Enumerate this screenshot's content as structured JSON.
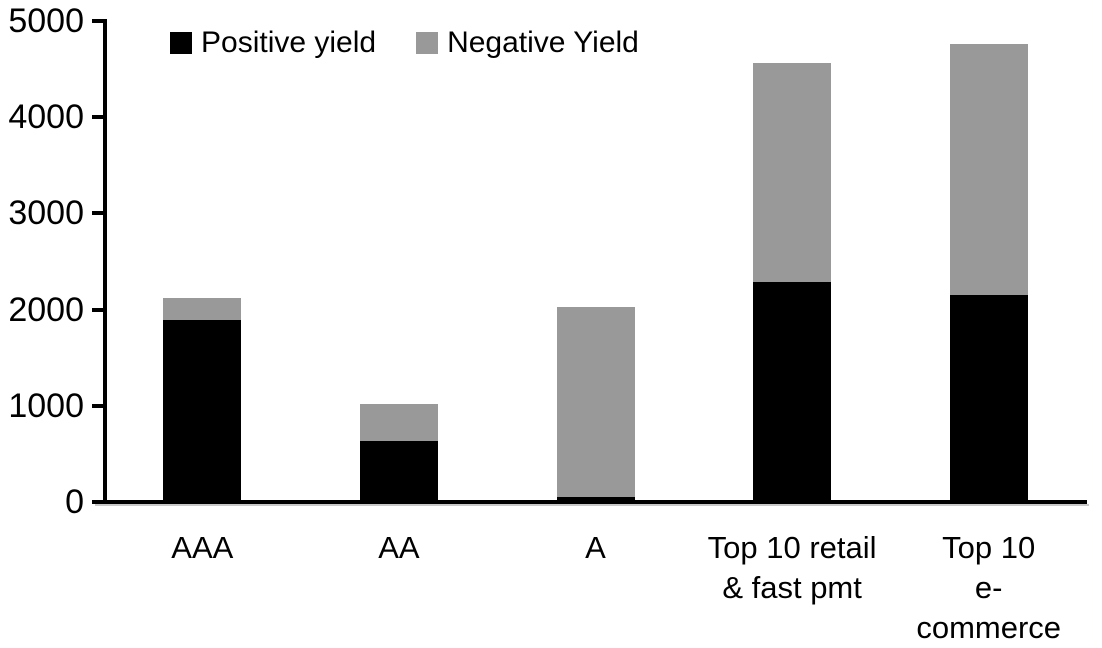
{
  "chart_data": {
    "type": "bar",
    "stacked": true,
    "title": "",
    "xlabel": "",
    "ylabel": "",
    "categories": [
      "AAA",
      "AA",
      "A",
      "Top 10 retail\n& fast pmt",
      "Top 10\ne-commerce"
    ],
    "series": [
      {
        "name": "Positive yield",
        "color": "#000000",
        "values": [
          1880,
          620,
          45,
          2275,
          2140
        ]
      },
      {
        "name": "Negative Yield",
        "color": "#999999",
        "values": [
          230,
          385,
          1980,
          2275,
          2610
        ]
      }
    ],
    "totals": [
      2110,
      1005,
      2025,
      4550,
      4750
    ],
    "ylim": [
      0,
      5000
    ],
    "yticks": [
      0,
      1000,
      2000,
      3000,
      4000,
      5000
    ],
    "grid": false,
    "legend_position": "top-left",
    "axis_color": "#000000",
    "background_color": "#ffffff"
  }
}
